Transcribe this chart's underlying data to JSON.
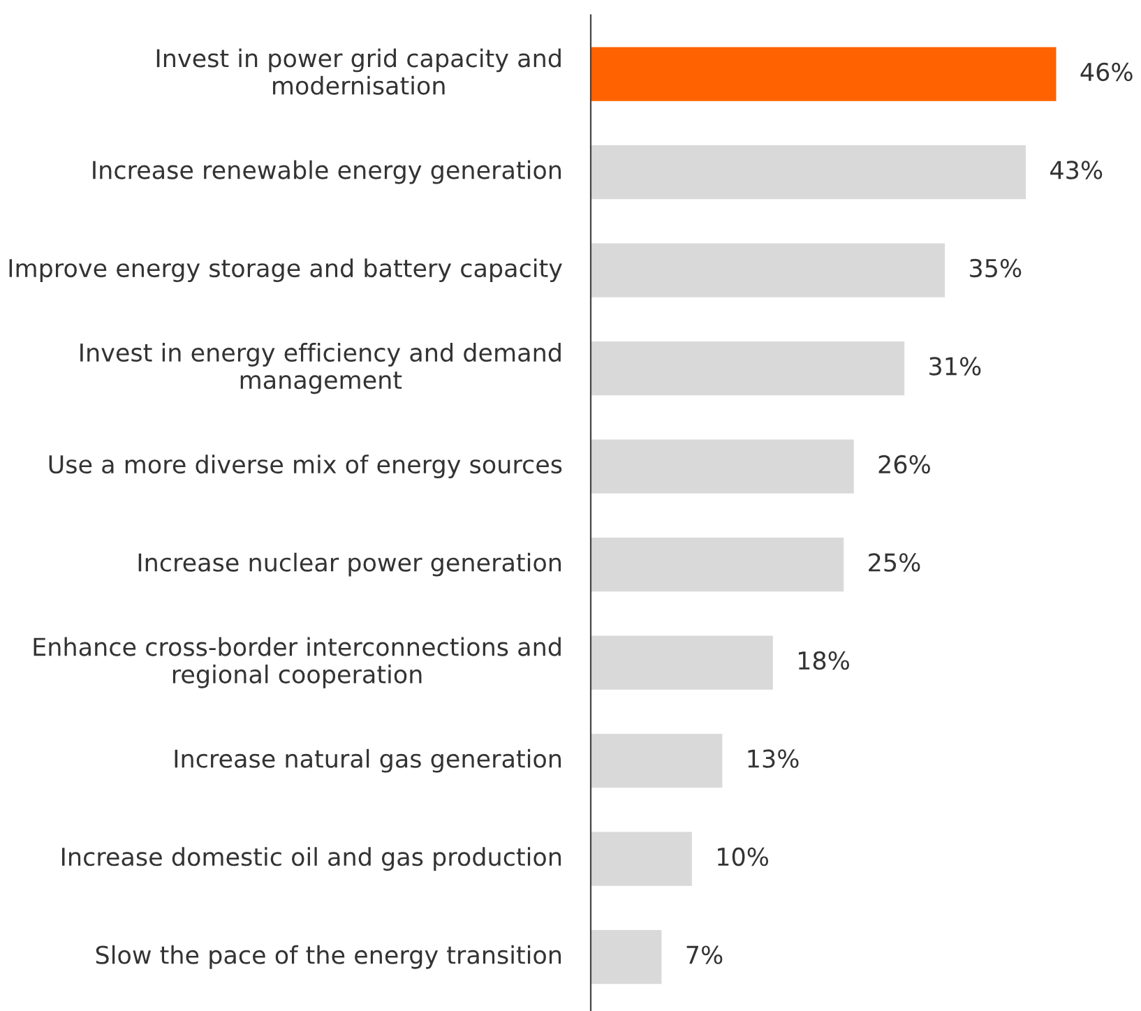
{
  "chart_data": {
    "type": "bar",
    "orientation": "horizontal",
    "categories": [
      "Invest in power grid capacity and modernisation",
      "Increase renewable energy generation",
      "Improve energy storage and battery capacity",
      "Invest in energy efficiency and demand management",
      "Use a more diverse mix of energy sources",
      "Increase nuclear power generation",
      "Enhance cross-border interconnections and regional cooperation",
      "Increase natural gas generation",
      "Increase domestic oil and gas production",
      "Slow the pace of the energy transition"
    ],
    "values": [
      46,
      43,
      35,
      31,
      26,
      25,
      18,
      13,
      10,
      7
    ],
    "colors": [
      "#ff6200",
      "#d9d9d9",
      "#d9d9d9",
      "#d9d9d9",
      "#d9d9d9",
      "#d9d9d9",
      "#d9d9d9",
      "#d9d9d9",
      "#d9d9d9",
      "#d9d9d9"
    ],
    "value_labels": [
      "46%",
      "43%",
      "35%",
      "31%",
      "26%",
      "25%",
      "18%",
      "13%",
      "10%",
      "7%"
    ],
    "data_labels": false
  }
}
